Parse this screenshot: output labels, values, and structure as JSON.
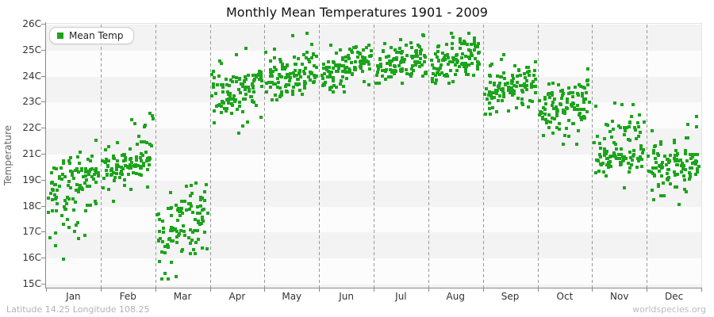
{
  "title": "Monthly Mean Temperatures 1901 - 2009",
  "legend": {
    "label": "Mean Temp"
  },
  "footer": {
    "left": "Latitude 14.25 Longitude 108.25",
    "right": "worldspecies.org"
  },
  "colors": {
    "point_green": "#1CA41C",
    "band_gray": "#f3f3f3",
    "band_white": "#fcfcfc",
    "grid_dash": "#999999",
    "axis": "#888888"
  },
  "chart_data": {
    "type": "scatter",
    "title": "Monthly Mean Temperatures 1901 - 2009",
    "xlabel": "",
    "ylabel": "Temperature",
    "series_name": "Mean Temp",
    "categories": [
      "Jan",
      "Feb",
      "Mar",
      "Apr",
      "May",
      "Jun",
      "Jul",
      "Aug",
      "Sep",
      "Oct",
      "Nov",
      "Dec"
    ],
    "y_tick_labels": [
      "26C",
      "25C",
      "24C",
      "23C",
      "22C",
      "21C",
      "19C",
      "18C",
      "17C",
      "16C",
      "15C"
    ],
    "y_tick_values": [
      26,
      25,
      24,
      23,
      22,
      21,
      19,
      18,
      17,
      16,
      15
    ],
    "ylim": [
      15,
      26
    ],
    "years": [
      1901,
      2009
    ],
    "points_per_month": 109,
    "grid": "vertical-dashed-month-boundaries, alternating horizontal bands",
    "legend_position": "top-left",
    "seed": 12345,
    "monthly_distributions": [
      {
        "month": "Jan",
        "mean": 18.8,
        "sd": 1.0,
        "min": 15.9,
        "max": 22.5,
        "trend_per_century": 0.8
      },
      {
        "month": "Feb",
        "mean": 20.3,
        "sd": 0.9,
        "min": 17.9,
        "max": 22.8,
        "trend_per_century": 1.0
      },
      {
        "month": "Mar",
        "mean": 17.3,
        "sd": 0.75,
        "min": 15.2,
        "max": 18.9,
        "trend_per_century": 0.6
      },
      {
        "month": "Apr",
        "mean": 23.35,
        "sd": 0.55,
        "min": 21.6,
        "max": 25.1,
        "trend_per_century": 0.6
      },
      {
        "month": "May",
        "mean": 24.1,
        "sd": 0.5,
        "min": 23.0,
        "max": 25.65,
        "trend_per_century": 0.5
      },
      {
        "month": "Jun",
        "mean": 24.4,
        "sd": 0.38,
        "min": 23.4,
        "max": 25.45,
        "trend_per_century": 0.5
      },
      {
        "month": "Jul",
        "mean": 24.5,
        "sd": 0.36,
        "min": 23.75,
        "max": 25.6,
        "trend_per_century": 0.5
      },
      {
        "month": "Aug",
        "mean": 24.6,
        "sd": 0.42,
        "min": 23.6,
        "max": 25.65,
        "trend_per_century": 0.6
      },
      {
        "month": "Sep",
        "mean": 23.6,
        "sd": 0.45,
        "min": 22.55,
        "max": 24.85,
        "trend_per_century": 0.6
      },
      {
        "month": "Oct",
        "mean": 22.9,
        "sd": 0.55,
        "min": 21.4,
        "max": 24.3,
        "trend_per_century": 0.5
      },
      {
        "month": "Nov",
        "mean": 21.1,
        "sd": 0.85,
        "min": 18.3,
        "max": 23.2,
        "trend_per_century": 0.6
      },
      {
        "month": "Dec",
        "mean": 20.3,
        "sd": 1.0,
        "min": 17.3,
        "max": 22.6,
        "trend_per_century": 0.6
      }
    ]
  }
}
